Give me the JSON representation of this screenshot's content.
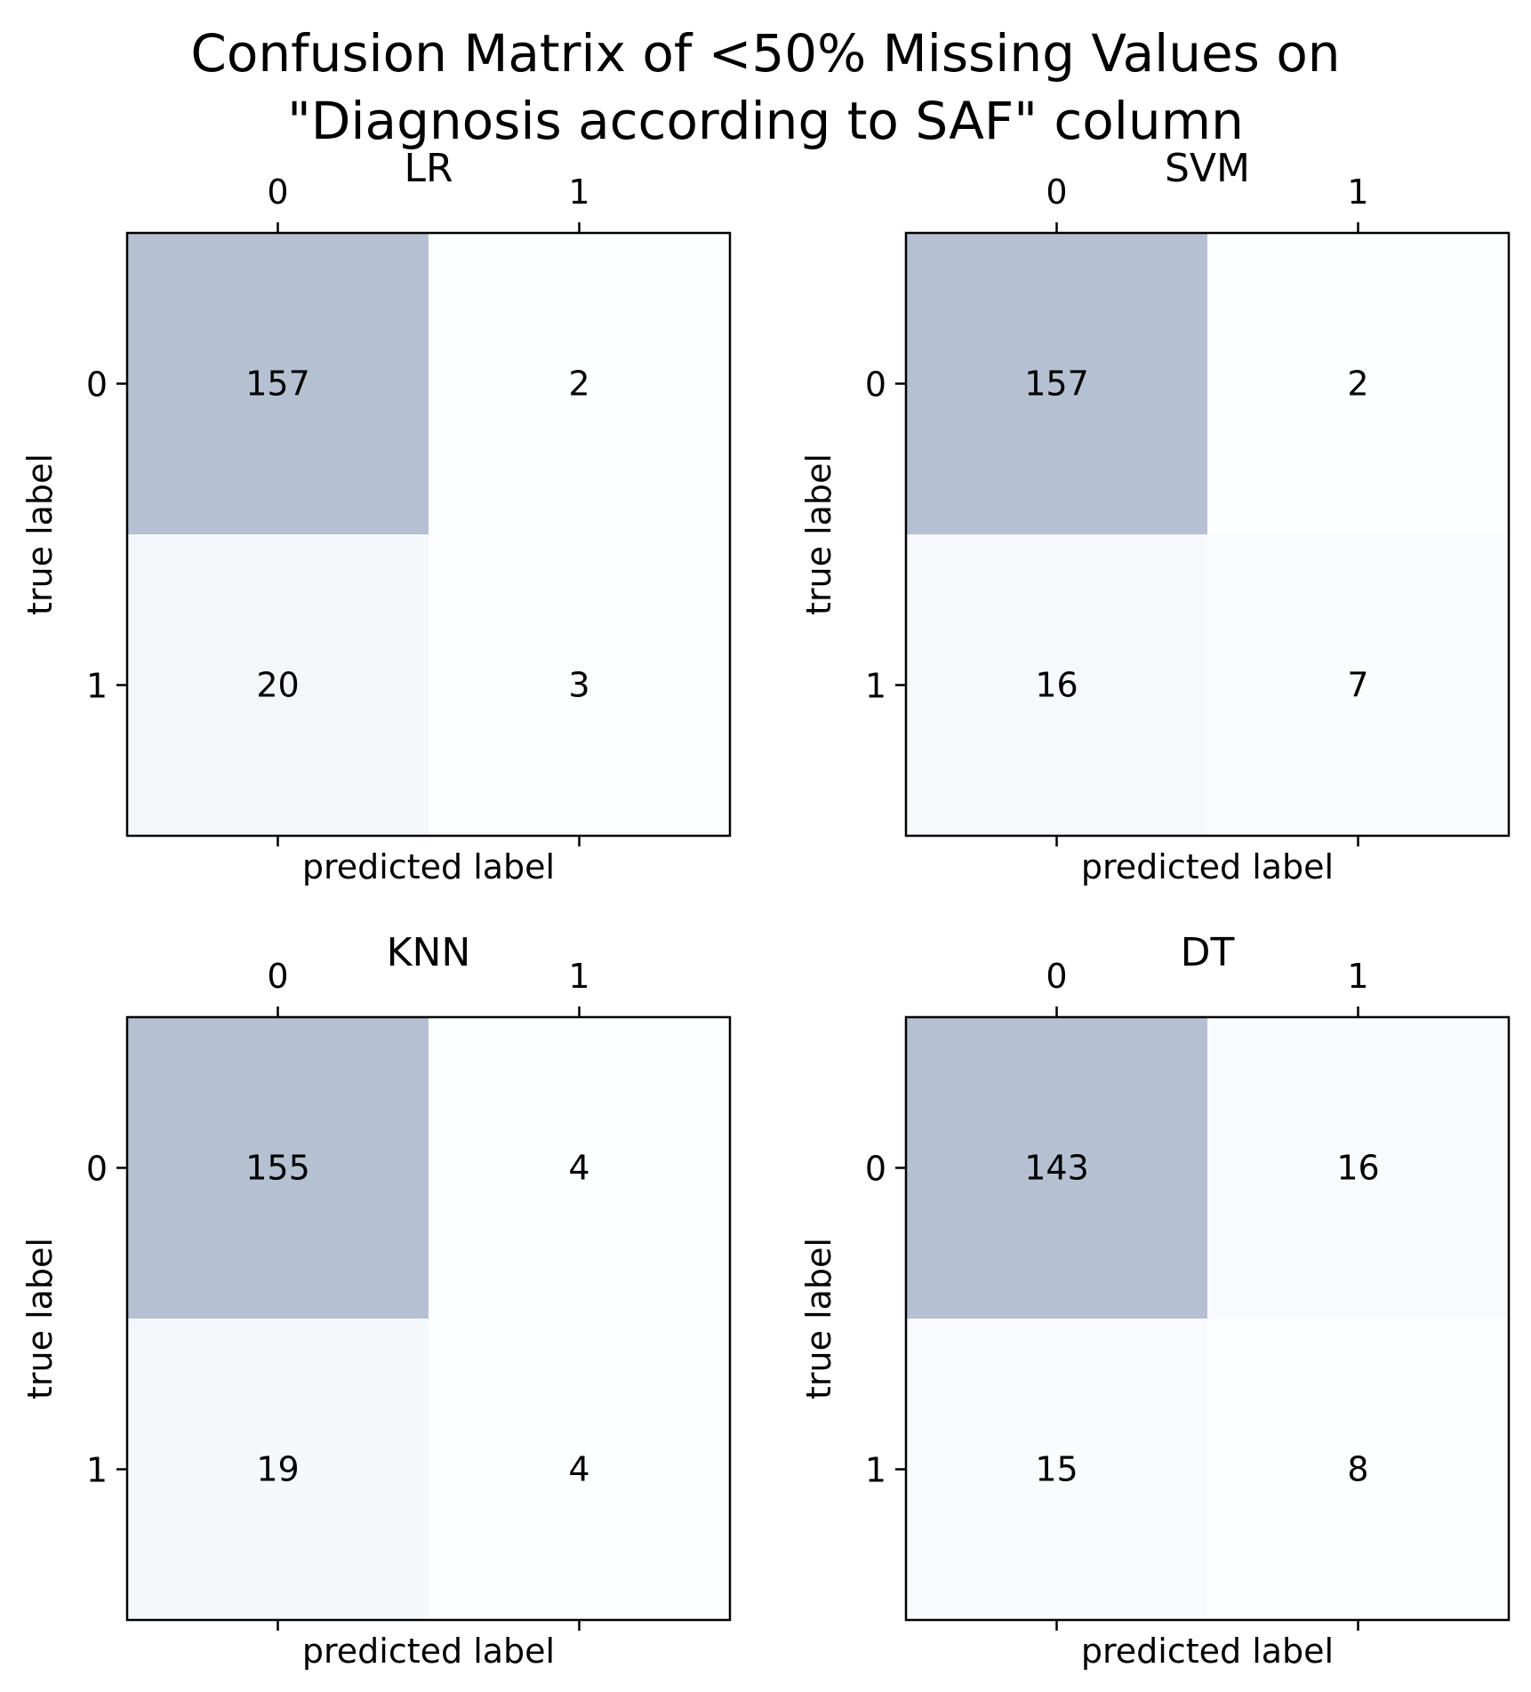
{
  "figure": {
    "title": "Confusion Matrix of <50% Missing Values on\n\"Diagnosis according to SAF\" column"
  },
  "chart_data": [
    {
      "type": "heatmap",
      "title": "LR",
      "xlabel": "predicted label",
      "ylabel": "true label",
      "x_tick_labels": [
        "0",
        "1"
      ],
      "y_tick_labels": [
        "0",
        "1"
      ],
      "matrix": [
        [
          157,
          2
        ],
        [
          20,
          3
        ]
      ],
      "colormap": "Blues",
      "alpha": 0.3
    },
    {
      "type": "heatmap",
      "title": "SVM",
      "xlabel": "predicted label",
      "ylabel": "true label",
      "x_tick_labels": [
        "0",
        "1"
      ],
      "y_tick_labels": [
        "0",
        "1"
      ],
      "matrix": [
        [
          157,
          2
        ],
        [
          16,
          7
        ]
      ],
      "colormap": "Blues",
      "alpha": 0.3
    },
    {
      "type": "heatmap",
      "title": "KNN",
      "xlabel": "predicted label",
      "ylabel": "true label",
      "x_tick_labels": [
        "0",
        "1"
      ],
      "y_tick_labels": [
        "0",
        "1"
      ],
      "matrix": [
        [
          155,
          4
        ],
        [
          19,
          4
        ]
      ],
      "colormap": "Blues",
      "alpha": 0.3
    },
    {
      "type": "heatmap",
      "title": "DT",
      "xlabel": "predicted label",
      "ylabel": "true label",
      "x_tick_labels": [
        "0",
        "1"
      ],
      "y_tick_labels": [
        "0",
        "1"
      ],
      "matrix": [
        [
          143,
          16
        ],
        [
          15,
          8
        ]
      ],
      "colormap": "Blues",
      "alpha": 0.3
    }
  ]
}
